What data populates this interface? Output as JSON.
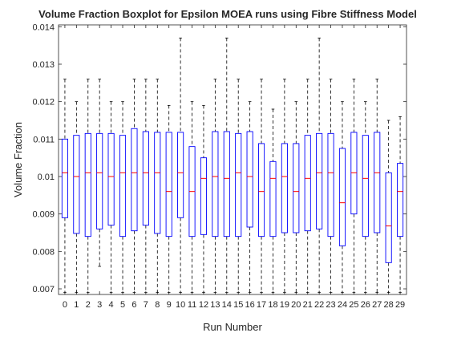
{
  "chart_data": {
    "type": "boxplot",
    "title": "Volume Fraction Boxplot for Epsilon MOEA runs using Fibre Stiffness Model",
    "xlabel": "Run Number",
    "ylabel": "Volume Fraction",
    "ylim": [
      0.00685,
      0.01405
    ],
    "yticks": [
      "0.007",
      "0.008",
      "0.009",
      "0.01",
      "0.011",
      "0.012",
      "0.013",
      "0.014"
    ],
    "categories": [
      "0",
      "1",
      "2",
      "3",
      "4",
      "5",
      "6",
      "7",
      "8",
      "9",
      "10",
      "11",
      "12",
      "13",
      "14",
      "15",
      "16",
      "17",
      "18",
      "19",
      "20",
      "21",
      "22",
      "23",
      "24",
      "25",
      "26",
      "27",
      "28",
      "29"
    ],
    "grid": false,
    "colors": {
      "box": "#0000ff",
      "median": "#ff0000",
      "whisker": "#000000",
      "axis": "#262626"
    },
    "boxes": [
      {
        "min": 0.0069,
        "q1": 0.0089,
        "median": 0.0101,
        "q3": 0.011,
        "max": 0.0126
      },
      {
        "min": 0.0069,
        "q1": 0.00848,
        "median": 0.01,
        "q3": 0.0111,
        "max": 0.012
      },
      {
        "min": 0.0069,
        "q1": 0.0084,
        "median": 0.0101,
        "q3": 0.01115,
        "max": 0.0126
      },
      {
        "min": 0.0076,
        "q1": 0.0086,
        "median": 0.0101,
        "q3": 0.01115,
        "max": 0.0126
      },
      {
        "min": 0.0069,
        "q1": 0.0087,
        "median": 0.01,
        "q3": 0.01115,
        "max": 0.012
      },
      {
        "min": 0.0069,
        "q1": 0.0084,
        "median": 0.0101,
        "q3": 0.0111,
        "max": 0.012
      },
      {
        "min": 0.0069,
        "q1": 0.00855,
        "median": 0.0101,
        "q3": 0.01128,
        "max": 0.0126
      },
      {
        "min": 0.0069,
        "q1": 0.0087,
        "median": 0.0101,
        "q3": 0.0112,
        "max": 0.0126
      },
      {
        "min": 0.0069,
        "q1": 0.00848,
        "median": 0.0101,
        "q3": 0.01118,
        "max": 0.0126
      },
      {
        "min": 0.0069,
        "q1": 0.0084,
        "median": 0.0096,
        "q3": 0.01118,
        "max": 0.0119
      },
      {
        "min": 0.0069,
        "q1": 0.0089,
        "median": 0.0101,
        "q3": 0.01118,
        "max": 0.0137
      },
      {
        "min": 0.0069,
        "q1": 0.0084,
        "median": 0.0096,
        "q3": 0.0108,
        "max": 0.012
      },
      {
        "min": 0.0069,
        "q1": 0.00845,
        "median": 0.00995,
        "q3": 0.0105,
        "max": 0.0119
      },
      {
        "min": 0.0069,
        "q1": 0.0084,
        "median": 0.01,
        "q3": 0.0112,
        "max": 0.0126
      },
      {
        "min": 0.0069,
        "q1": 0.0084,
        "median": 0.00995,
        "q3": 0.0112,
        "max": 0.0137
      },
      {
        "min": 0.0069,
        "q1": 0.0084,
        "median": 0.0101,
        "q3": 0.01115,
        "max": 0.0126
      },
      {
        "min": 0.0069,
        "q1": 0.00865,
        "median": 0.01,
        "q3": 0.0112,
        "max": 0.012
      },
      {
        "min": 0.0069,
        "q1": 0.0084,
        "median": 0.0096,
        "q3": 0.01088,
        "max": 0.0126
      },
      {
        "min": 0.0069,
        "q1": 0.0084,
        "median": 0.00995,
        "q3": 0.0104,
        "max": 0.0118
      },
      {
        "min": 0.0069,
        "q1": 0.0085,
        "median": 0.01,
        "q3": 0.01088,
        "max": 0.0126
      },
      {
        "min": 0.0069,
        "q1": 0.0085,
        "median": 0.0096,
        "q3": 0.01088,
        "max": 0.012
      },
      {
        "min": 0.0069,
        "q1": 0.00855,
        "median": 0.00995,
        "q3": 0.0111,
        "max": 0.0126
      },
      {
        "min": 0.0069,
        "q1": 0.0086,
        "median": 0.0101,
        "q3": 0.01115,
        "max": 0.0137
      },
      {
        "min": 0.0069,
        "q1": 0.0084,
        "median": 0.0101,
        "q3": 0.01115,
        "max": 0.0126
      },
      {
        "min": 0.0069,
        "q1": 0.00815,
        "median": 0.0093,
        "q3": 0.01075,
        "max": 0.012
      },
      {
        "min": 0.0069,
        "q1": 0.009,
        "median": 0.0101,
        "q3": 0.01118,
        "max": 0.0126
      },
      {
        "min": 0.0069,
        "q1": 0.0084,
        "median": 0.00995,
        "q3": 0.0111,
        "max": 0.012
      },
      {
        "min": 0.0069,
        "q1": 0.0085,
        "median": 0.0101,
        "q3": 0.01118,
        "max": 0.0126
      },
      {
        "min": 0.0069,
        "q1": 0.0077,
        "median": 0.00868,
        "q3": 0.0101,
        "max": 0.0115
      },
      {
        "min": 0.0069,
        "q1": 0.0084,
        "median": 0.0096,
        "q3": 0.01035,
        "max": 0.0116
      }
    ]
  }
}
